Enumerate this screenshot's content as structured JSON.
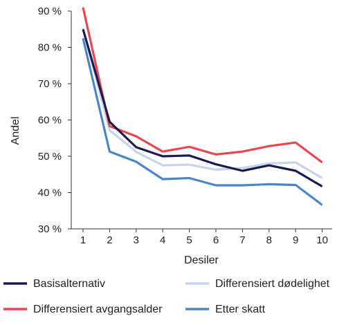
{
  "chart_data": {
    "type": "line",
    "xlabel": "Desiler",
    "ylabel": "Andel",
    "x": [
      1,
      2,
      3,
      4,
      5,
      6,
      7,
      8,
      9,
      10
    ],
    "ylim": [
      30,
      90
    ],
    "yticks": [
      30,
      40,
      50,
      60,
      70,
      80,
      90
    ],
    "ytick_labels": [
      "30 %",
      "40 %",
      "50 %",
      "60 %",
      "70 %",
      "80 %",
      "90 %"
    ],
    "xtick_labels": [
      "1",
      "2",
      "3",
      "4",
      "5",
      "6",
      "7",
      "8",
      "9",
      "10"
    ],
    "grid": false,
    "legend_position": "bottom",
    "series": [
      {
        "name": "Basisalternativ",
        "color": "#1b1a4f",
        "values": [
          85,
          59.5,
          52.5,
          50,
          50.2,
          47.8,
          46,
          47.5,
          46,
          41.7
        ]
      },
      {
        "name": "Differensiert avgangsalder",
        "color": "#e8474f",
        "values": [
          91,
          58.3,
          55.5,
          51.3,
          52.6,
          50.5,
          51.3,
          52.8,
          53.8,
          48.3
        ]
      },
      {
        "name": "Differensiert dødelighet",
        "color": "#c3d4ec",
        "values": [
          85.2,
          57.2,
          51.2,
          47.5,
          47.7,
          46.3,
          46.8,
          48,
          48.3,
          44
        ]
      },
      {
        "name": "Etter skatt",
        "color": "#4a86c5",
        "values": [
          82.5,
          51.3,
          48.5,
          43.7,
          44,
          42,
          42,
          42.3,
          42.1,
          36.6
        ]
      }
    ]
  }
}
